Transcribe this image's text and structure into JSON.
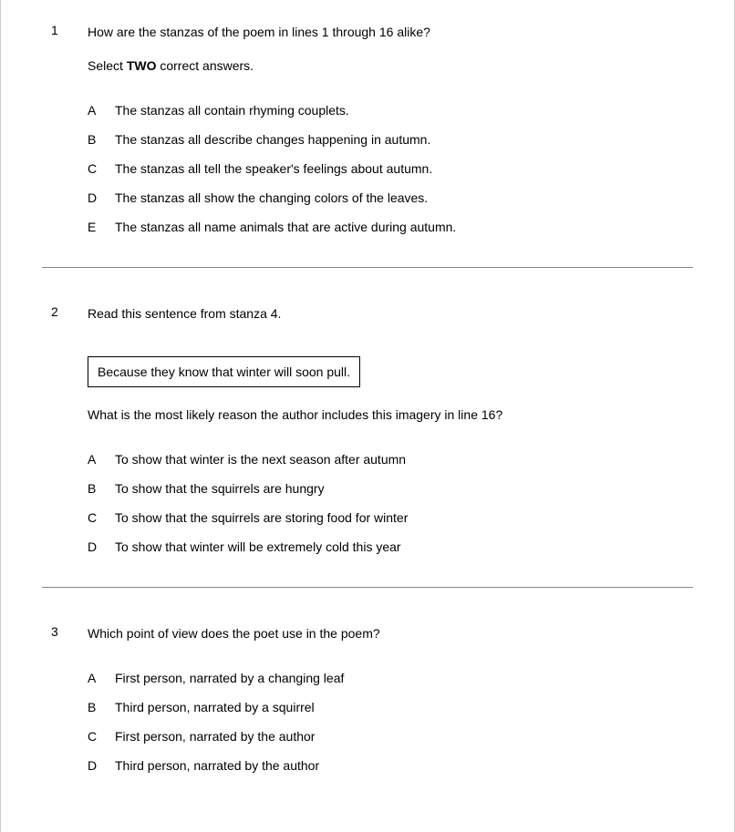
{
  "page": {
    "text_color": "#000000",
    "background_color": "#ffffff",
    "border_color": "#cccccc",
    "divider_color": "#888888",
    "font_family": "Verdana, Geneva, sans-serif",
    "font_size_pt": 11
  },
  "questions": [
    {
      "number": "1",
      "prompt_line1": "How are the stanzas of the poem in lines 1 through 16 alike?",
      "prompt_line2_prefix": "Select ",
      "prompt_line2_bold": "TWO",
      "prompt_line2_suffix": " correct answers.",
      "choices": [
        {
          "letter": "A",
          "text": "The stanzas all contain rhyming couplets."
        },
        {
          "letter": "B",
          "text": "The stanzas all describe changes happening in autumn."
        },
        {
          "letter": "C",
          "text": "The stanzas all tell the speaker's feelings about autumn."
        },
        {
          "letter": "D",
          "text": "The stanzas all show the changing colors of the leaves."
        },
        {
          "letter": "E",
          "text": "The stanzas all name animals that are active during autumn."
        }
      ]
    },
    {
      "number": "2",
      "prompt_line1": "Read this sentence from stanza 4.",
      "quote": "Because they know that winter will soon pull.",
      "prompt_line2": "What is the most likely reason the author includes this imagery in line 16?",
      "choices": [
        {
          "letter": "A",
          "text": "To show that winter is the next season after autumn"
        },
        {
          "letter": "B",
          "text": "To show that the squirrels are hungry"
        },
        {
          "letter": "C",
          "text": "To show that the squirrels are storing food for winter"
        },
        {
          "letter": "D",
          "text": "To show that winter will be extremely cold this year"
        }
      ]
    },
    {
      "number": "3",
      "prompt_line1": "Which point of view does the poet use in the poem?",
      "choices": [
        {
          "letter": "A",
          "text": "First person, narrated by a changing leaf"
        },
        {
          "letter": "B",
          "text": "Third person, narrated by a squirrel"
        },
        {
          "letter": "C",
          "text": "First person, narrated by the author"
        },
        {
          "letter": "D",
          "text": "Third person, narrated by the author"
        }
      ]
    }
  ]
}
